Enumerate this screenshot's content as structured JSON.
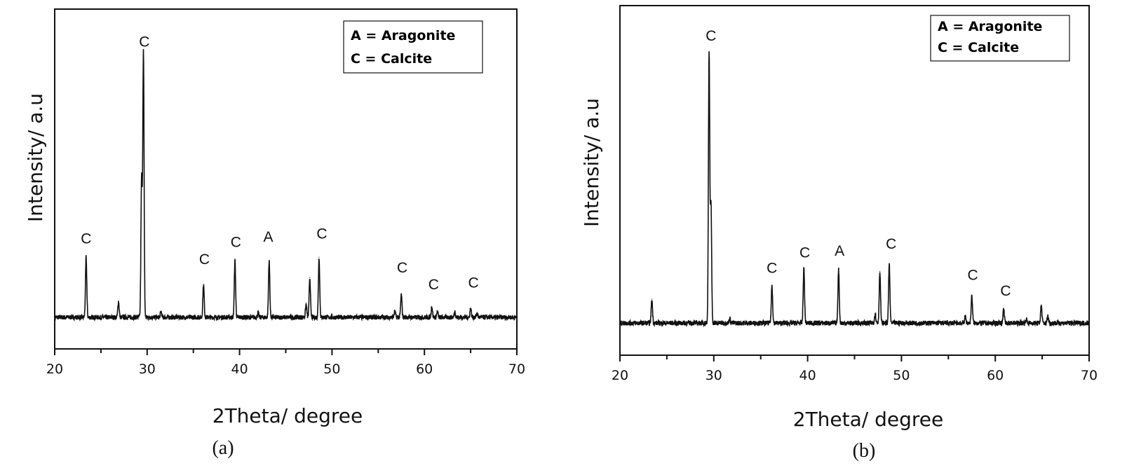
{
  "chart_data": [
    {
      "type": "line",
      "caption": "(a)",
      "xlabel": "2Theta/ degree",
      "ylabel": "Intensity/ a.u",
      "xlim": [
        20,
        70
      ],
      "ylim": [
        0,
        100
      ],
      "xticks": [
        "20",
        "30",
        "40",
        "50",
        "60",
        "70"
      ],
      "grid": false,
      "legend_placement": "top-right",
      "legend": [
        "A = Aragonite",
        "C = Calcite"
      ],
      "baseline": 9.3,
      "peaks": [
        {
          "x": 23.4,
          "y": 27
        },
        {
          "x": 26.9,
          "y": 14
        },
        {
          "x": 29.4,
          "y": 50
        },
        {
          "x": 29.6,
          "y": 87
        },
        {
          "x": 31.5,
          "y": 11
        },
        {
          "x": 36.1,
          "y": 19
        },
        {
          "x": 39.5,
          "y": 26
        },
        {
          "x": 42.0,
          "y": 10.5
        },
        {
          "x": 43.2,
          "y": 26
        },
        {
          "x": 47.2,
          "y": 13
        },
        {
          "x": 47.6,
          "y": 21
        },
        {
          "x": 48.6,
          "y": 27
        },
        {
          "x": 56.8,
          "y": 11
        },
        {
          "x": 57.5,
          "y": 16
        },
        {
          "x": 60.8,
          "y": 12.5
        },
        {
          "x": 61.4,
          "y": 11
        },
        {
          "x": 63.3,
          "y": 11
        },
        {
          "x": 65.0,
          "y": 12
        },
        {
          "x": 65.7,
          "y": 10.5
        }
      ],
      "annotations": [
        {
          "x": 23.4,
          "y": 31,
          "text": "C"
        },
        {
          "x": 29.7,
          "y": 89,
          "text": "C"
        },
        {
          "x": 36.2,
          "y": 25,
          "text": "C"
        },
        {
          "x": 39.6,
          "y": 30,
          "text": "C"
        },
        {
          "x": 43.1,
          "y": 31.5,
          "text": "A"
        },
        {
          "x": 48.9,
          "y": 32.5,
          "text": "C"
        },
        {
          "x": 57.6,
          "y": 22.5,
          "text": "C"
        },
        {
          "x": 61.0,
          "y": 17.5,
          "text": "C"
        },
        {
          "x": 65.3,
          "y": 18
        },
        "__"
      ]
    },
    {
      "type": "line",
      "caption": "(b)",
      "xlabel": "2Theta/ degree",
      "ylabel": "Intensity/ a.u",
      "xlim": [
        20,
        70
      ],
      "ylim": [
        0,
        100
      ],
      "xticks": [
        "20",
        "30",
        "40",
        "50",
        "60",
        "70"
      ],
      "grid": false,
      "legend_placement": "top-right",
      "legend": [
        "A = Aragonite",
        "C = Calcite"
      ],
      "baseline": 9.2,
      "peaks": [
        {
          "x": 23.4,
          "y": 16
        },
        {
          "x": 29.5,
          "y": 86.5
        },
        {
          "x": 29.7,
          "y": 43
        },
        {
          "x": 31.7,
          "y": 10.5
        },
        {
          "x": 36.2,
          "y": 20
        },
        {
          "x": 39.6,
          "y": 25
        },
        {
          "x": 43.3,
          "y": 24.5
        },
        {
          "x": 47.2,
          "y": 12
        },
        {
          "x": 47.7,
          "y": 24
        },
        {
          "x": 48.7,
          "y": 26
        },
        {
          "x": 56.8,
          "y": 11
        },
        {
          "x": 57.5,
          "y": 17
        },
        {
          "x": 60.9,
          "y": 13
        },
        {
          "x": 63.3,
          "y": 10.3
        },
        {
          "x": 64.9,
          "y": 14.3
        },
        {
          "x": 65.6,
          "y": 11.2
        }
      ],
      "annotations": [
        {
          "x": 29.7,
          "y": 90,
          "text": "C"
        },
        {
          "x": 36.2,
          "y": 23.5,
          "text": "C"
        },
        {
          "x": 39.7,
          "y": 28
        },
        {
          "x": 43.4,
          "y": 28.5,
          "text": "A"
        },
        {
          "x": 48.9,
          "y": 30.5,
          "text": "C"
        },
        {
          "x": 57.6,
          "y": 21.5,
          "text": "C"
        },
        {
          "x": 61.1,
          "y": 17,
          "text": "C"
        }
      ]
    }
  ]
}
